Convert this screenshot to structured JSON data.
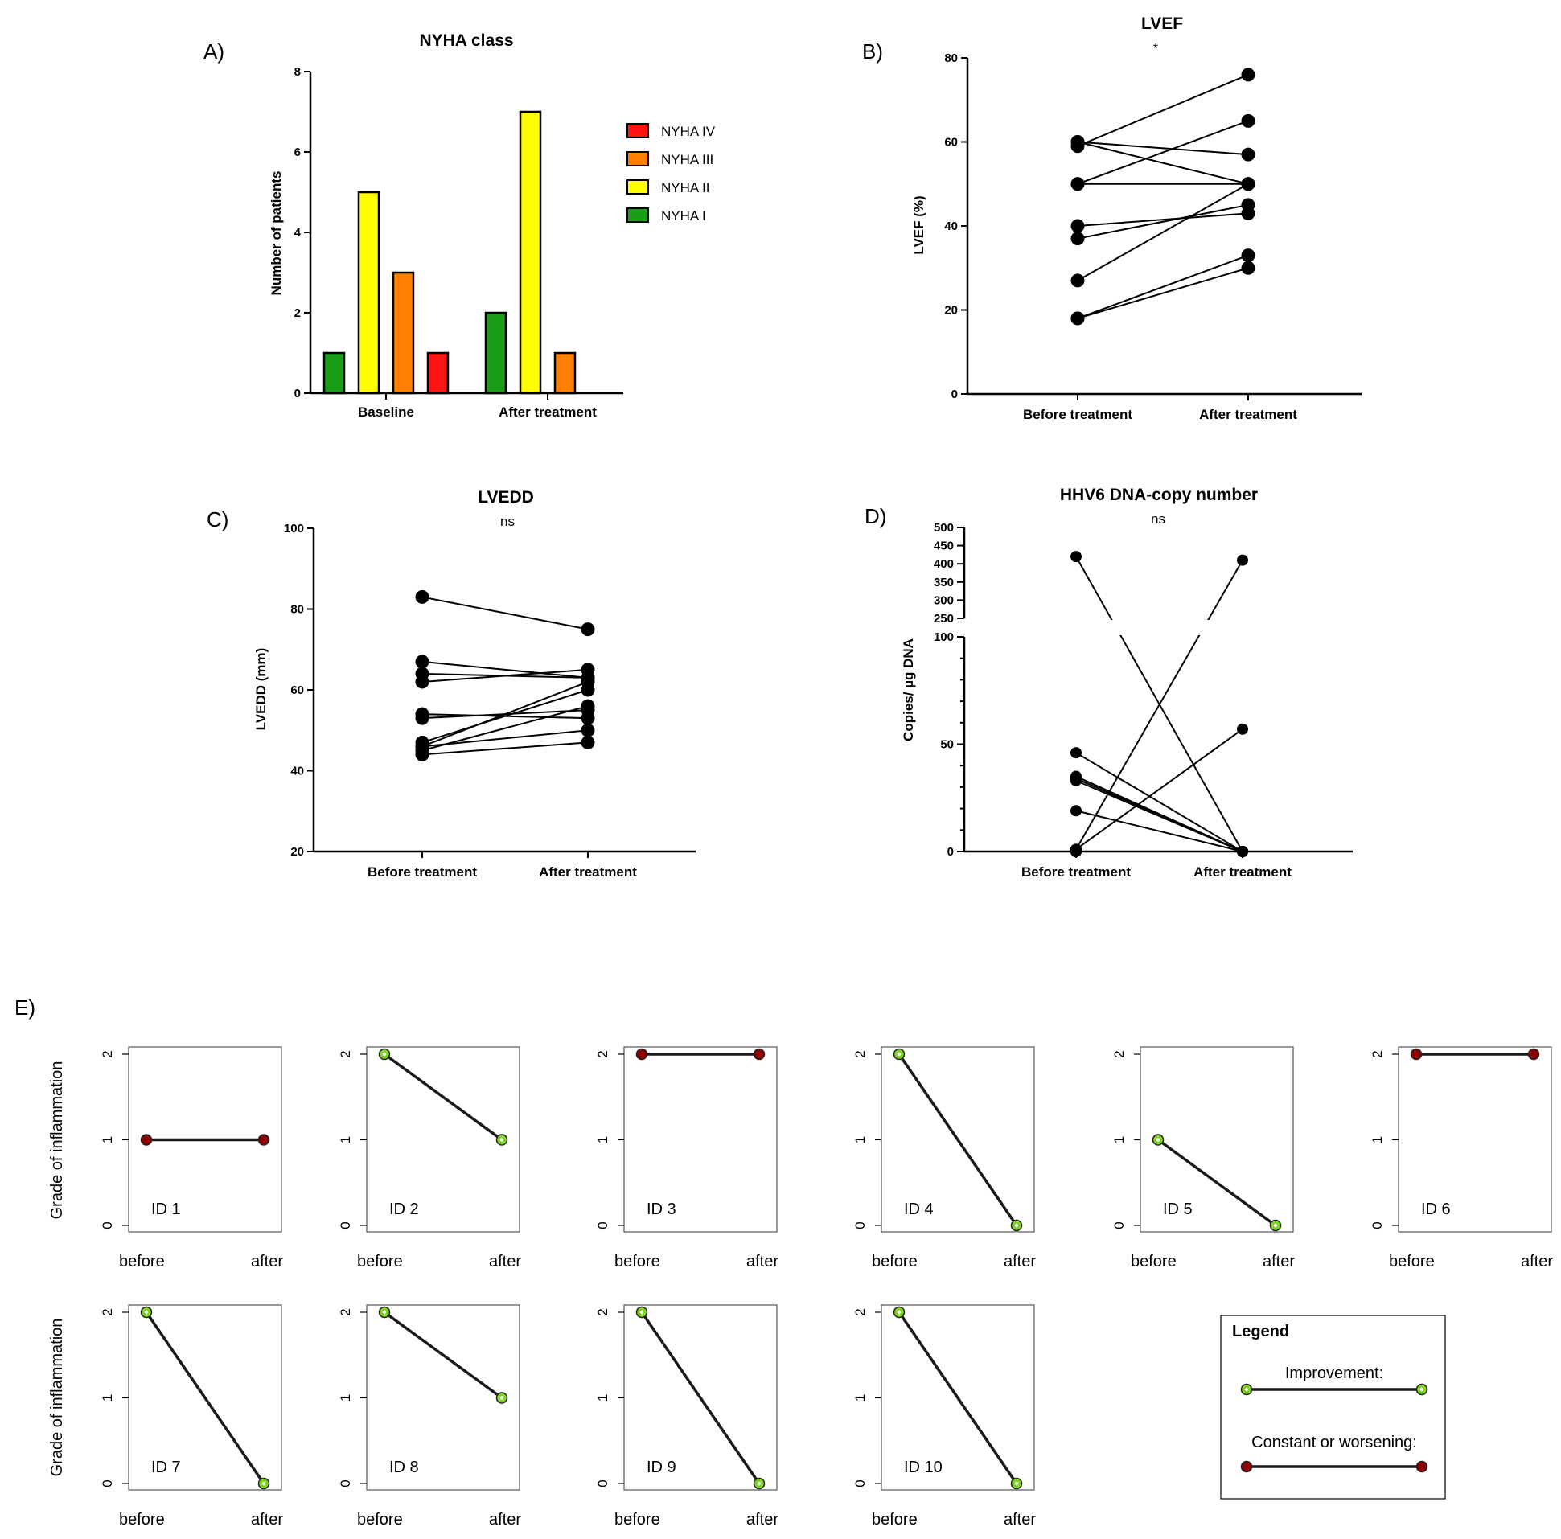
{
  "colors": {
    "nyha_iv": "#ff1414",
    "nyha_iii": "#ff8000",
    "nyha_ii": "#ffff00",
    "nyha_i": "#1a9e1a",
    "improvement": "#7ed321",
    "constant": "#8b0000"
  },
  "chart_data": [
    {
      "panel_label": "A)",
      "type": "bar",
      "title": "NYHA class",
      "categories": [
        "Baseline",
        "After treatment"
      ],
      "series": [
        {
          "name": "NYHA I",
          "values": [
            1,
            2
          ]
        },
        {
          "name": "NYHA II",
          "values": [
            5,
            7
          ]
        },
        {
          "name": "NYHA III",
          "values": [
            3,
            1
          ]
        },
        {
          "name": "NYHA IV",
          "values": [
            1,
            0
          ]
        }
      ],
      "legend": [
        "NYHA IV",
        "NYHA III",
        "NYHA II",
        "NYHA I"
      ],
      "ylabel": "Number of patients",
      "ylim": [
        0,
        8
      ],
      "yticks": [
        "0",
        "2",
        "4",
        "6",
        "8"
      ]
    },
    {
      "panel_label": "B)",
      "type": "line",
      "title": "LVEF",
      "annotation": "*",
      "categories": [
        "Before treatment",
        "After treatment"
      ],
      "pairs": [
        [
          18,
          30
        ],
        [
          18,
          33
        ],
        [
          27,
          50
        ],
        [
          37,
          45
        ],
        [
          40,
          43
        ],
        [
          50,
          50
        ],
        [
          50,
          65
        ],
        [
          59,
          76
        ],
        [
          60,
          57
        ],
        [
          60,
          50
        ]
      ],
      "ylabel": "LVEF (%)",
      "ylim": [
        0,
        80
      ],
      "yticks": [
        "0",
        "20",
        "40",
        "60",
        "80"
      ]
    },
    {
      "panel_label": "C)",
      "type": "line",
      "title": "LVEDD",
      "annotation": "ns",
      "categories": [
        "Before treatment",
        "After treatment"
      ],
      "pairs": [
        [
          83,
          75
        ],
        [
          67,
          63
        ],
        [
          64,
          63
        ],
        [
          62,
          65
        ],
        [
          54,
          53
        ],
        [
          53,
          55
        ],
        [
          47,
          60
        ],
        [
          46,
          62
        ],
        [
          46,
          50
        ],
        [
          44,
          47
        ],
        [
          45,
          56
        ]
      ],
      "ylabel": "LVEDD (mm)",
      "ylim": [
        20,
        100
      ],
      "yticks": [
        "20",
        "40",
        "60",
        "80",
        "100"
      ]
    },
    {
      "panel_label": "D)",
      "type": "line",
      "title": "HHV6 DNA-copy number",
      "annotation": "ns",
      "categories": [
        "Before treatment",
        "After treatment"
      ],
      "pairs": [
        [
          420,
          0
        ],
        [
          46,
          0
        ],
        [
          35,
          0
        ],
        [
          34,
          0
        ],
        [
          33,
          0
        ],
        [
          19,
          0
        ],
        [
          1,
          57
        ],
        [
          1,
          410
        ],
        [
          0,
          0
        ],
        [
          0,
          0
        ]
      ],
      "ylabel": "Copies/ µg DNA",
      "ylim": [
        0,
        500
      ],
      "axis_break": [
        100,
        250
      ],
      "yticks_lower": [
        "0",
        "50",
        "100"
      ],
      "yticks_upper": [
        "250",
        "300",
        "350",
        "400",
        "450",
        "500"
      ]
    },
    {
      "panel_label": "E)",
      "type": "line",
      "title": "",
      "ylabel": "Grade of inflammation",
      "xticks": [
        "before",
        "after"
      ],
      "yticks": [
        "0",
        "1",
        "2"
      ],
      "ylim": [
        0,
        2
      ],
      "patients": [
        {
          "id": "ID  1",
          "before": 1,
          "after": 1,
          "improved": false
        },
        {
          "id": "ID  2",
          "before": 2,
          "after": 1,
          "improved": true
        },
        {
          "id": "ID  3",
          "before": 2,
          "after": 2,
          "improved": false
        },
        {
          "id": "ID  4",
          "before": 2,
          "after": 0,
          "improved": true
        },
        {
          "id": "ID  5",
          "before": 1,
          "after": 0,
          "improved": true
        },
        {
          "id": "ID  6",
          "before": 2,
          "after": 2,
          "improved": false
        },
        {
          "id": "ID  7",
          "before": 2,
          "after": 0,
          "improved": true
        },
        {
          "id": "ID  8",
          "before": 2,
          "after": 1,
          "improved": true
        },
        {
          "id": "ID  9",
          "before": 2,
          "after": 0,
          "improved": true
        },
        {
          "id": "ID  10",
          "before": 2,
          "after": 0,
          "improved": true
        }
      ],
      "legend": {
        "title": "Legend",
        "improvement": "Improvement:",
        "constant": "Constant or worsening:"
      }
    }
  ]
}
